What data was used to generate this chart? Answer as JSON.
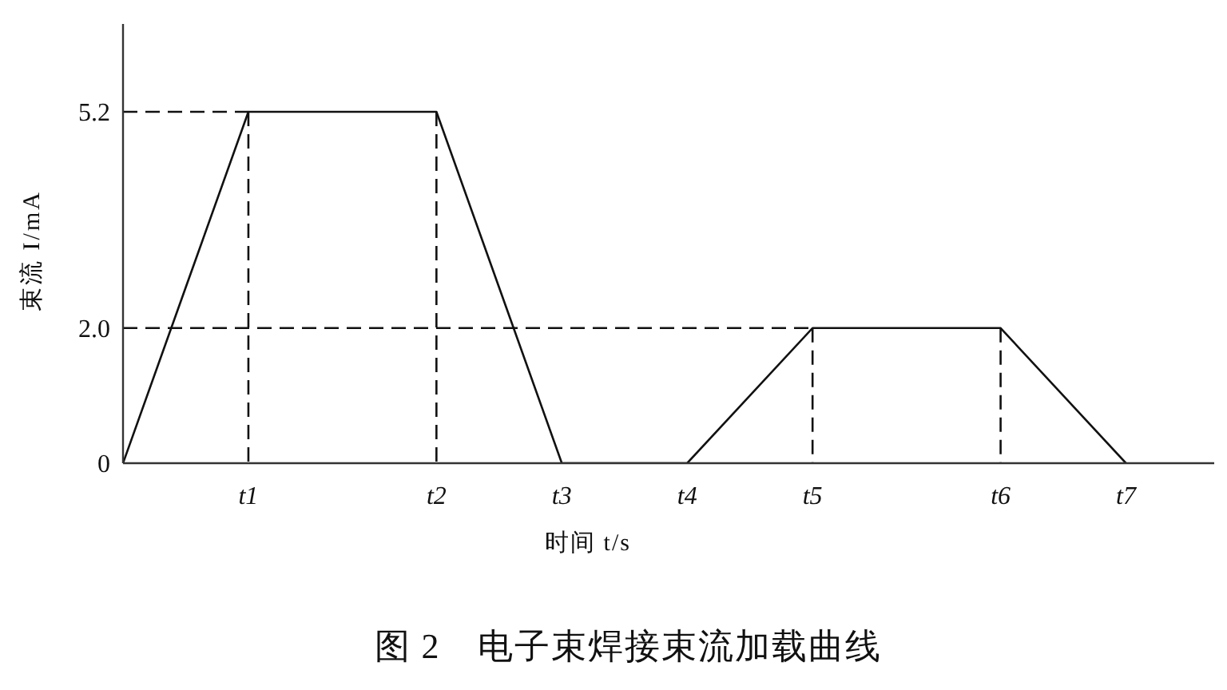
{
  "chart_data": {
    "type": "line",
    "title": "图 2　电子束焊接束流加载曲线",
    "xlabel": "时间 t/s",
    "ylabel": "束流 I/mA",
    "categories": [
      null,
      null,
      "t1",
      null,
      null,
      "t2",
      null,
      "t3",
      null,
      "t4",
      null,
      "t5",
      null,
      null,
      "t6",
      null,
      "t7",
      null
    ],
    "ylim": [
      0,
      6.5
    ],
    "yticks": [
      0,
      {
        "value": 2,
        "label": "2.0"
      },
      5.2
    ],
    "marker": "none",
    "series": [
      {
        "color": "#111111",
        "line_style": "solid",
        "values": [
          0,
          2.6,
          5.2,
          5.2,
          5.2,
          5.2,
          2.6,
          0,
          0,
          0,
          1,
          2,
          2,
          2,
          2,
          1,
          0,
          null
        ]
      },
      {
        "color": "#111111",
        "line_style": "dashed",
        "values": [
          5.2,
          5.2,
          5.2,
          null,
          null,
          null,
          null,
          null,
          null,
          null,
          null,
          null,
          null,
          null,
          null,
          null,
          null,
          null
        ]
      },
      {
        "color": "#111111",
        "line_style": "dashed",
        "values": [
          2,
          2,
          2,
          2,
          2,
          2,
          2,
          2,
          2,
          2,
          2,
          2,
          null,
          null,
          null,
          null,
          null,
          null
        ]
      },
      {
        "color": "#111111",
        "line_style": "dashed",
        "x": [
          "t1",
          "t1"
        ],
        "values": [
          5.2,
          0
        ]
      },
      {
        "color": "#111111",
        "line_style": "dashed",
        "x": [
          "t2",
          "t2"
        ],
        "values": [
          5.2,
          0
        ]
      },
      {
        "color": "#111111",
        "line_style": "dashed",
        "x": [
          "t5",
          "t5"
        ],
        "values": [
          2,
          0
        ]
      },
      {
        "color": "#111111",
        "line_style": "dashed",
        "x": [
          "t6",
          "t6"
        ],
        "values": [
          2,
          0
        ]
      }
    ]
  }
}
